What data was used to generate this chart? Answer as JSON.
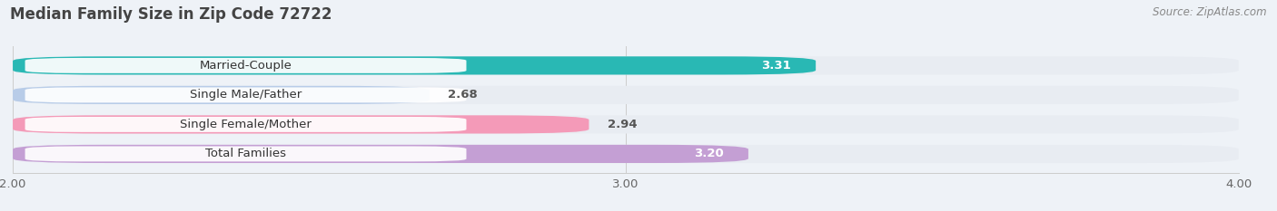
{
  "title": "Median Family Size in Zip Code 72722",
  "source": "Source: ZipAtlas.com",
  "categories": [
    "Married-Couple",
    "Single Male/Father",
    "Single Female/Mother",
    "Total Families"
  ],
  "values": [
    3.31,
    2.68,
    2.94,
    3.2
  ],
  "bar_colors": [
    "#29b8b4",
    "#b8cce8",
    "#f49ab8",
    "#c49fd4"
  ],
  "xmin": 2.0,
  "xmax": 4.0,
  "xticks": [
    2.0,
    3.0,
    4.0
  ],
  "background_color": "#eef2f7",
  "bar_height": 0.62,
  "title_fontsize": 12,
  "label_fontsize": 9.5,
  "value_fontsize": 9.5,
  "tick_fontsize": 9.5,
  "value_inside_threshold": 3.0,
  "value_inside_colors": [
    "white",
    "#555555",
    "#555555",
    "white"
  ]
}
